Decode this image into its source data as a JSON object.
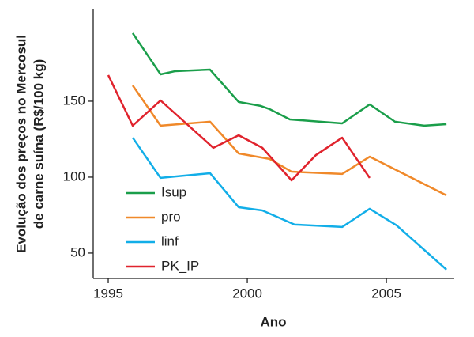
{
  "chart_data": {
    "type": "line",
    "x_label": "Ano",
    "y_label": [
      "Evolução dos preços no Mercosul",
      "de carne suína (R$/100 kg)"
    ],
    "xlim": [
      1994.46,
      2007.44
    ],
    "ylim": [
      33.3,
      210.4
    ],
    "xticks": [
      1995,
      2000,
      2005
    ],
    "yticks": [
      50,
      100,
      150
    ],
    "legend": "lower left",
    "series": [
      {
        "name": "Isup",
        "color": "#1a9e4a",
        "x": [
          1995.88,
          1996.88,
          1997.41,
          1998.66,
          1999.69,
          2000.48,
          2000.8,
          2001.53,
          2003.41,
          2004.4,
          2005.31,
          2006.36,
          2007.16
        ],
        "values": [
          194.8,
          167.7,
          169.8,
          170.8,
          149.5,
          146.9,
          144.8,
          138,
          135.4,
          147.9,
          136.5,
          133.9,
          134.9
        ]
      },
      {
        "name": "pro",
        "color": "#f0892a",
        "x": [
          1995.88,
          1996.88,
          1998.66,
          1999.69,
          2000.8,
          2001.59,
          2003.41,
          2004.4,
          2007.16
        ],
        "values": [
          160.4,
          133.9,
          136.5,
          115.6,
          112,
          103.6,
          102.1,
          113.5,
          88
        ]
      },
      {
        "name": "linf",
        "color": "#12aee8",
        "x": [
          1995.88,
          1996.88,
          1998.66,
          1999.69,
          2000.54,
          2001.7,
          2003.41,
          2004.4,
          2005.37,
          2007.16
        ],
        "values": [
          126,
          99.5,
          102.6,
          80.2,
          78.1,
          68.8,
          67.2,
          79.2,
          68.2,
          39.1
        ]
      },
      {
        "name": "PK_IP",
        "color": "#e0232d",
        "x": [
          1995,
          1995.88,
          1996.88,
          1998.78,
          1999.69,
          2000.54,
          2001.59,
          2002.47,
          2003.41,
          2004.4
        ],
        "values": [
          167.2,
          133.9,
          150.5,
          119.3,
          127.6,
          119.3,
          97.9,
          114.6,
          126,
          99.5
        ]
      }
    ]
  }
}
